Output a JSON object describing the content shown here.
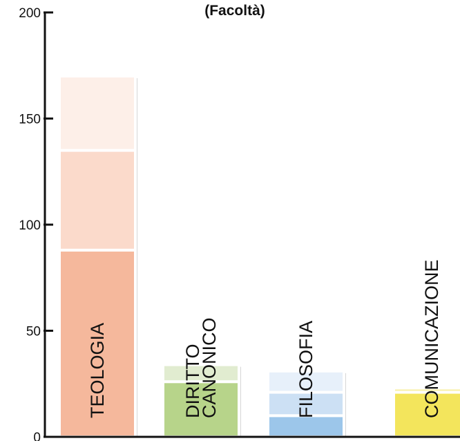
{
  "chart_data": {
    "type": "bar",
    "stacked": true,
    "title": "(Facoltà)",
    "xlabel": "",
    "ylabel": "",
    "ylim": [
      0,
      200
    ],
    "yticks": [
      0,
      50,
      100,
      150,
      200
    ],
    "grid": false,
    "legend": "none",
    "categories": [
      {
        "label_lines": [
          "TEOLOGIA"
        ],
        "segments": [
          {
            "value": 88,
            "color": "#f5b89c"
          },
          {
            "value": 47,
            "color": "#fbdacb"
          },
          {
            "value": 35,
            "color": "#fdefe8"
          }
        ]
      },
      {
        "label_lines": [
          "DIRITTO",
          "CANONICO"
        ],
        "segments": [
          {
            "value": 26,
            "color": "#b7d48a"
          },
          {
            "value": 8,
            "color": "#e1ecd0"
          }
        ]
      },
      {
        "label_lines": [
          "FILOSOFIA"
        ],
        "segments": [
          {
            "value": 10,
            "color": "#9cc6ea"
          },
          {
            "value": 11,
            "color": "#cce0f4"
          },
          {
            "value": 10,
            "color": "#e7f0fa"
          }
        ]
      },
      {
        "label_lines": [
          "COMUNICAZIONE"
        ],
        "segments": [
          {
            "value": 21,
            "color": "#f3e55c"
          },
          {
            "value": 2,
            "color": "#f8f0a8"
          }
        ]
      }
    ]
  }
}
